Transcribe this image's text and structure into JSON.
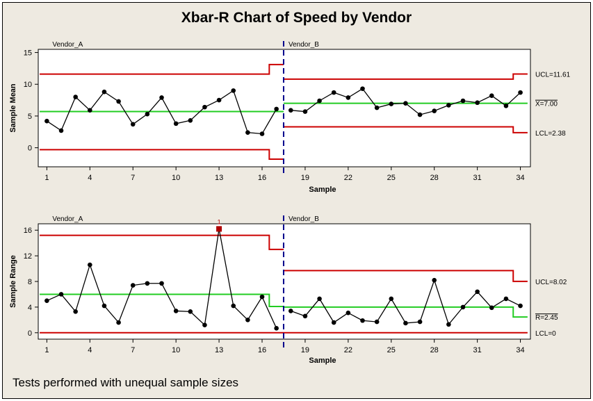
{
  "title": "Xbar-R Chart of Speed by Vendor",
  "footnote": "Tests performed with unequal sample sizes",
  "colors": {
    "limits": "#cc0000",
    "center": "#22cc22",
    "data": "#000000",
    "divider": "#00008b",
    "flag": "#b00000",
    "background": "#eeeae1"
  },
  "chart_data": [
    {
      "type": "line",
      "name": "xbar",
      "ylabel": "Sample Mean",
      "xlabel": "Sample",
      "ylim": [
        -3,
        15.5
      ],
      "xlim": [
        0.4,
        34.7
      ],
      "yticks": [
        0,
        5,
        10,
        15
      ],
      "xticks": [
        1,
        4,
        7,
        10,
        13,
        16,
        19,
        22,
        25,
        28,
        31,
        34
      ],
      "stage_labels": [
        "Vendor_A",
        "Vendor_B"
      ],
      "stage_break": 17.5,
      "samples": [
        1,
        2,
        3,
        4,
        5,
        6,
        7,
        8,
        9,
        10,
        11,
        12,
        13,
        14,
        15,
        16,
        17,
        18,
        19,
        20,
        21,
        22,
        23,
        24,
        25,
        26,
        27,
        28,
        29,
        30,
        31,
        32,
        33,
        34
      ],
      "values": [
        4.2,
        2.7,
        8.0,
        5.9,
        8.8,
        7.3,
        3.7,
        5.3,
        7.9,
        3.8,
        4.3,
        6.4,
        7.5,
        9.0,
        2.4,
        2.2,
        6.1,
        5.9,
        5.7,
        7.4,
        8.7,
        7.9,
        9.3,
        6.3,
        6.9,
        7.0,
        5.2,
        5.8,
        6.7,
        7.4,
        7.1,
        8.2,
        6.6,
        8.7
      ],
      "ucl": [
        {
          "x": [
            0.5,
            16.5
          ],
          "y": 11.6
        },
        {
          "x": [
            16.5,
            17.5
          ],
          "y": 13.1
        },
        {
          "x": [
            17.5,
            33.5
          ],
          "y": 10.8
        },
        {
          "x": [
            33.5,
            34.5
          ],
          "y": 11.61
        }
      ],
      "center": [
        {
          "x": [
            0.5,
            17.5
          ],
          "y": 5.7
        },
        {
          "x": [
            17.5,
            34.5
          ],
          "y": 7.0
        }
      ],
      "lcl": [
        {
          "x": [
            0.5,
            16.5
          ],
          "y": -0.3
        },
        {
          "x": [
            16.5,
            17.5
          ],
          "y": -1.8
        },
        {
          "x": [
            17.5,
            33.5
          ],
          "y": 3.3
        },
        {
          "x": [
            33.5,
            34.5
          ],
          "y": 2.38
        }
      ],
      "limit_labels": [
        {
          "text": "UCL=11.61",
          "y": 11.61
        },
        {
          "text": "X=7.00",
          "y": 7.0,
          "overline": true
        },
        {
          "text": "LCL=2.38",
          "y": 2.38
        }
      ]
    },
    {
      "type": "line",
      "name": "range",
      "ylabel": "Sample Range",
      "xlabel": "Sample",
      "ylim": [
        -1,
        17
      ],
      "xlim": [
        0.4,
        34.7
      ],
      "yticks": [
        0,
        4,
        8,
        12,
        16
      ],
      "xticks": [
        1,
        4,
        7,
        10,
        13,
        16,
        19,
        22,
        25,
        28,
        31,
        34
      ],
      "stage_labels": [
        "Vendor_A",
        "Vendor_B"
      ],
      "stage_break": 17.5,
      "samples": [
        1,
        2,
        3,
        4,
        5,
        6,
        7,
        8,
        9,
        10,
        11,
        12,
        13,
        14,
        15,
        16,
        17,
        18,
        19,
        20,
        21,
        22,
        23,
        24,
        25,
        26,
        27,
        28,
        29,
        30,
        31,
        32,
        33,
        34
      ],
      "values": [
        5.0,
        6.0,
        3.3,
        10.6,
        4.2,
        1.6,
        7.4,
        7.7,
        7.7,
        3.4,
        3.3,
        1.2,
        16.2,
        4.2,
        2.0,
        5.6,
        0.7,
        3.4,
        2.6,
        5.3,
        1.6,
        3.1,
        1.9,
        1.7,
        5.3,
        1.5,
        1.7,
        8.2,
        1.3,
        4.0,
        6.4,
        3.9,
        5.3,
        4.2
      ],
      "flagged": [
        {
          "sample": 13,
          "label": "1"
        }
      ],
      "ucl": [
        {
          "x": [
            0.5,
            16.5
          ],
          "y": 15.2
        },
        {
          "x": [
            16.5,
            17.5
          ],
          "y": 13.0
        },
        {
          "x": [
            17.5,
            33.5
          ],
          "y": 9.7
        },
        {
          "x": [
            33.5,
            34.5
          ],
          "y": 8.02
        }
      ],
      "center": [
        {
          "x": [
            0.5,
            16.5
          ],
          "y": 6.0
        },
        {
          "x": [
            16.5,
            17.5
          ],
          "y": 4.1
        },
        {
          "x": [
            17.5,
            33.5
          ],
          "y": 4.0
        },
        {
          "x": [
            33.5,
            34.5
          ],
          "y": 2.45
        }
      ],
      "lcl": [
        {
          "x": [
            0.5,
            34.5
          ],
          "y": 0
        }
      ],
      "limit_labels": [
        {
          "text": "UCL=8.02",
          "y": 8.02
        },
        {
          "text": "R=2.45",
          "y": 2.45,
          "overline": true
        },
        {
          "text": "LCL=0",
          "y": 0
        }
      ]
    }
  ]
}
